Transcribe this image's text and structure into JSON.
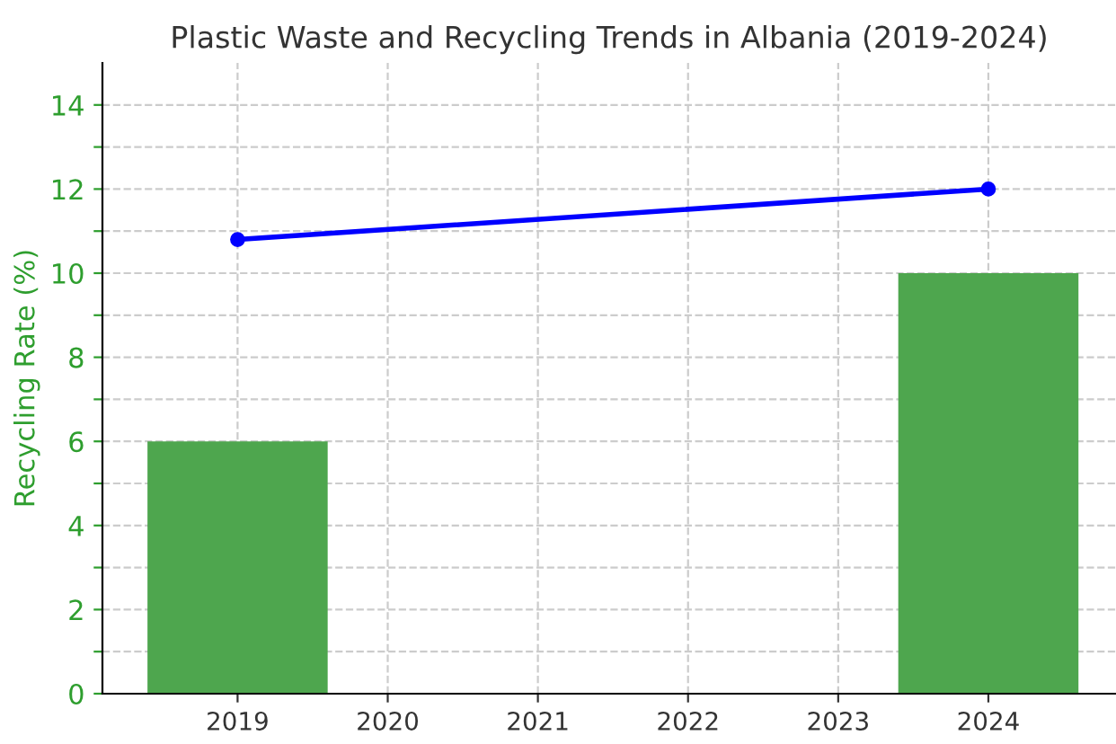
{
  "chart_data": {
    "type": "bar",
    "title": "Plastic Waste and Recycling Trends in Albania (2019-2024)",
    "ylabel": "Recycling Rate (%)",
    "x": [
      2019,
      2024
    ],
    "series": [
      {
        "color": "#4ea64e",
        "values": [
          6,
          10
        ]
      },
      {
        "type": "line",
        "color": "#0000ff",
        "values": [
          10.8,
          12
        ],
        "marker": "circle"
      }
    ],
    "xlim": [
      2018.1,
      2024.85
    ],
    "xticks": [
      2019,
      2020,
      2021,
      2022,
      2023,
      2024
    ],
    "ylim": [
      0,
      15
    ],
    "yticks": [
      0,
      {
        "value": 1,
        "label": null
      },
      2,
      {
        "value": 3,
        "label": null
      },
      4,
      {
        "value": 5,
        "label": null
      },
      6,
      {
        "value": 7,
        "label": null
      },
      8,
      {
        "value": 9,
        "label": null
      },
      10,
      {
        "value": 11,
        "label": null
      },
      12,
      {
        "value": 13,
        "label": null
      },
      14
    ],
    "grid": true,
    "legend": false
  }
}
